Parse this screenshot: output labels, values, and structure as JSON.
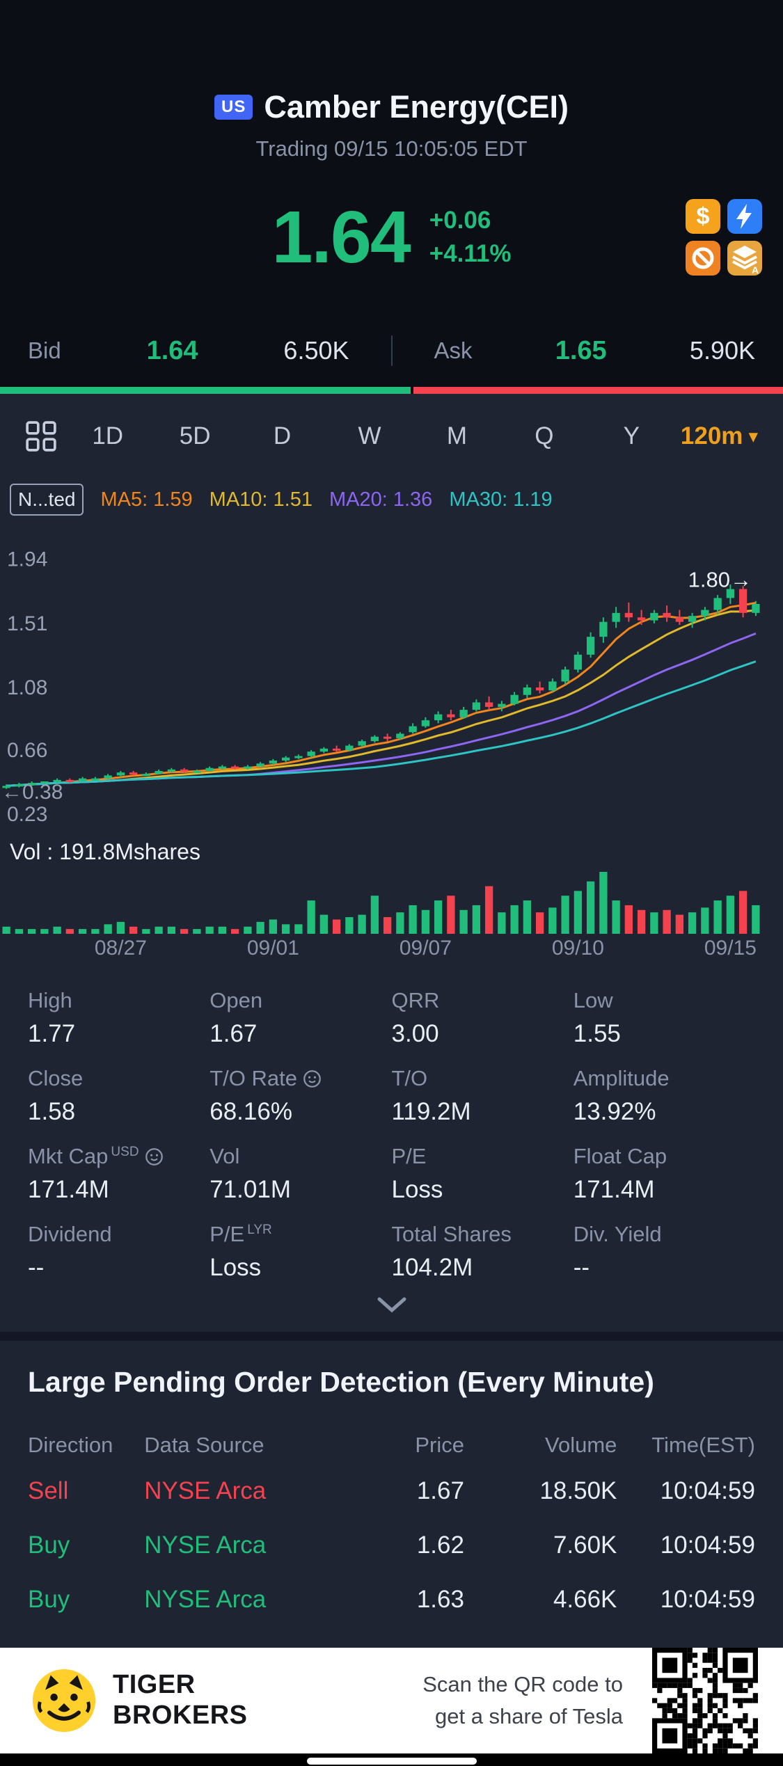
{
  "header": {
    "flag": "US",
    "title": "Camber Energy(CEI)",
    "subtitle": "Trading 09/15 10:05:05 EDT"
  },
  "quote": {
    "price": "1.64",
    "change": "+0.06",
    "change_pct": "+4.11%",
    "badges": [
      "dollar-badge-icon",
      "lightning-badge-icon",
      "no-short-badge-icon",
      "layers-badge-icon"
    ],
    "accent_green": "#21bd7a",
    "accent_red": "#f2434e"
  },
  "bid_ask": {
    "bid_label": "Bid",
    "bid_price": "1.64",
    "bid_size": "6.50K",
    "ask_label": "Ask",
    "ask_price": "1.65",
    "ask_size": "5.90K",
    "bid_ratio": 0.524
  },
  "toolbar": {
    "tabs": [
      "1D",
      "5D",
      "D",
      "W",
      "M",
      "Q",
      "Y"
    ],
    "interval": "120m",
    "caret": "▾"
  },
  "legend": {
    "adjust_label": "N...ted"
  },
  "chart_data": {
    "type": "candlestick",
    "title": "CEI 120-minute candlestick chart with volume",
    "vol_label": "Vol : 191.8Mshares",
    "y_ticks": [
      1.94,
      1.51,
      1.08,
      0.66,
      0.23
    ],
    "y_range": [
      0.1,
      2.2
    ],
    "x_ticks": [
      {
        "label": "08/27",
        "index": 9
      },
      {
        "label": "09/01",
        "index": 21
      },
      {
        "label": "09/07",
        "index": 33
      },
      {
        "label": "09/10",
        "index": 45
      },
      {
        "label": "09/15",
        "index": 57
      }
    ],
    "markers": {
      "left": {
        "text": "←0.38",
        "value": 0.38
      },
      "right": {
        "text": "1.80→",
        "value": 1.8
      }
    },
    "colors": {
      "up": "#21bd7a",
      "down": "#f2434e"
    },
    "ma": [
      {
        "period": 5,
        "label": "MA5: 1.59",
        "color": "#f0861c"
      },
      {
        "period": 10,
        "label": "MA10: 1.51",
        "color": "#e0b92c"
      },
      {
        "period": 20,
        "label": "MA20: 1.36",
        "color": "#8d66f2"
      },
      {
        "period": 30,
        "label": "MA30: 1.19",
        "color": "#2fc4c4"
      }
    ],
    "candles": [
      [
        0.41,
        0.43,
        0.4,
        0.42
      ],
      [
        0.42,
        0.44,
        0.41,
        0.43
      ],
      [
        0.43,
        0.45,
        0.42,
        0.44
      ],
      [
        0.44,
        0.45,
        0.43,
        0.45
      ],
      [
        0.45,
        0.47,
        0.44,
        0.46
      ],
      [
        0.46,
        0.47,
        0.44,
        0.45
      ],
      [
        0.45,
        0.48,
        0.45,
        0.47
      ],
      [
        0.47,
        0.48,
        0.46,
        0.47
      ],
      [
        0.47,
        0.5,
        0.46,
        0.49
      ],
      [
        0.49,
        0.52,
        0.48,
        0.51
      ],
      [
        0.51,
        0.52,
        0.49,
        0.5
      ],
      [
        0.5,
        0.51,
        0.49,
        0.5
      ],
      [
        0.5,
        0.53,
        0.5,
        0.52
      ],
      [
        0.52,
        0.54,
        0.51,
        0.53
      ],
      [
        0.53,
        0.54,
        0.51,
        0.52
      ],
      [
        0.52,
        0.53,
        0.51,
        0.52
      ],
      [
        0.52,
        0.55,
        0.52,
        0.54
      ],
      [
        0.54,
        0.56,
        0.53,
        0.55
      ],
      [
        0.55,
        0.56,
        0.53,
        0.54
      ],
      [
        0.54,
        0.56,
        0.53,
        0.55
      ],
      [
        0.55,
        0.58,
        0.55,
        0.57
      ],
      [
        0.57,
        0.6,
        0.56,
        0.59
      ],
      [
        0.59,
        0.62,
        0.58,
        0.61
      ],
      [
        0.61,
        0.63,
        0.6,
        0.62
      ],
      [
        0.62,
        0.66,
        0.61,
        0.65
      ],
      [
        0.65,
        0.68,
        0.64,
        0.67
      ],
      [
        0.67,
        0.69,
        0.65,
        0.66
      ],
      [
        0.66,
        0.7,
        0.65,
        0.69
      ],
      [
        0.69,
        0.73,
        0.68,
        0.72
      ],
      [
        0.72,
        0.76,
        0.71,
        0.75
      ],
      [
        0.75,
        0.77,
        0.72,
        0.74
      ],
      [
        0.74,
        0.78,
        0.73,
        0.77
      ],
      [
        0.78,
        0.84,
        0.77,
        0.82
      ],
      [
        0.82,
        0.88,
        0.81,
        0.86
      ],
      [
        0.86,
        0.92,
        0.84,
        0.9
      ],
      [
        0.9,
        0.93,
        0.86,
        0.88
      ],
      [
        0.88,
        0.95,
        0.87,
        0.93
      ],
      [
        0.93,
        1.0,
        0.92,
        0.98
      ],
      [
        0.98,
        1.02,
        0.93,
        0.95
      ],
      [
        0.95,
        0.99,
        0.92,
        0.97
      ],
      [
        0.97,
        1.05,
        0.96,
        1.03
      ],
      [
        1.03,
        1.1,
        1.01,
        1.08
      ],
      [
        1.08,
        1.12,
        1.04,
        1.06
      ],
      [
        1.06,
        1.14,
        1.05,
        1.12
      ],
      [
        1.12,
        1.22,
        1.1,
        1.2
      ],
      [
        1.2,
        1.32,
        1.18,
        1.3
      ],
      [
        1.3,
        1.45,
        1.28,
        1.42
      ],
      [
        1.42,
        1.55,
        1.38,
        1.52
      ],
      [
        1.52,
        1.62,
        1.48,
        1.58
      ],
      [
        1.58,
        1.65,
        1.52,
        1.55
      ],
      [
        1.55,
        1.6,
        1.5,
        1.53
      ],
      [
        1.53,
        1.6,
        1.51,
        1.58
      ],
      [
        1.58,
        1.63,
        1.52,
        1.55
      ],
      [
        1.55,
        1.6,
        1.5,
        1.52
      ],
      [
        1.52,
        1.58,
        1.48,
        1.56
      ],
      [
        1.56,
        1.62,
        1.53,
        1.6
      ],
      [
        1.6,
        1.7,
        1.57,
        1.68
      ],
      [
        1.68,
        1.77,
        1.64,
        1.74
      ],
      [
        1.74,
        1.76,
        1.55,
        1.58
      ],
      [
        1.58,
        1.66,
        1.56,
        1.64
      ]
    ],
    "volumes": [
      3,
      2,
      2,
      2,
      3,
      2,
      2,
      2,
      4,
      5,
      3,
      2,
      3,
      3,
      2,
      2,
      3,
      3,
      2,
      3,
      5,
      6,
      4,
      4,
      14,
      8,
      6,
      7,
      8,
      16,
      7,
      9,
      12,
      10,
      14,
      16,
      10,
      12,
      20,
      9,
      12,
      14,
      9,
      11,
      16,
      18,
      22,
      26,
      14,
      12,
      10,
      9,
      10,
      8,
      9,
      11,
      14,
      16,
      18,
      12
    ]
  },
  "stats": {
    "cells": [
      {
        "label": "High",
        "value": "1.77"
      },
      {
        "label": "Open",
        "value": "1.67"
      },
      {
        "label": "QRR",
        "value": "3.00"
      },
      {
        "label": "Low",
        "value": "1.55"
      },
      {
        "label": "Close",
        "value": "1.58"
      },
      {
        "label": "T/O Rate",
        "info": true,
        "value": "68.16%"
      },
      {
        "label": "T/O",
        "value": "119.2M"
      },
      {
        "label": "Amplitude",
        "value": "13.92%"
      },
      {
        "label": "Mkt Cap",
        "sup": "USD",
        "info": true,
        "value": "171.4M"
      },
      {
        "label": "Vol",
        "value": "71.01M"
      },
      {
        "label": "P/E",
        "value": "Loss"
      },
      {
        "label": "Float Cap",
        "value": "171.4M"
      },
      {
        "label": "Dividend",
        "value": "--"
      },
      {
        "label": "P/E",
        "sup": "LYR",
        "value": "Loss"
      },
      {
        "label": "Total Shares",
        "value": "104.2M"
      },
      {
        "label": "Div. Yield",
        "value": "--"
      }
    ]
  },
  "orders": {
    "title": "Large Pending Order Detection (Every Minute)",
    "columns": [
      "Direction",
      "Data Source",
      "Price",
      "Volume",
      "Time(EST)"
    ],
    "rows": [
      {
        "direction": "Sell",
        "source": "NYSE Arca",
        "price": "1.67",
        "volume": "18.50K",
        "time": "10:04:59",
        "side": "sell"
      },
      {
        "direction": "Buy",
        "source": "NYSE Arca",
        "price": "1.62",
        "volume": "7.60K",
        "time": "10:04:59",
        "side": "buy"
      },
      {
        "direction": "Buy",
        "source": "NYSE Arca",
        "price": "1.63",
        "volume": "4.66K",
        "time": "10:04:59",
        "side": "buy"
      }
    ]
  },
  "footer": {
    "brand_line1": "TIGER",
    "brand_line2": "BROKERS",
    "promo_line1": "Scan the QR code to",
    "promo_line2": "get a share of Tesla"
  }
}
